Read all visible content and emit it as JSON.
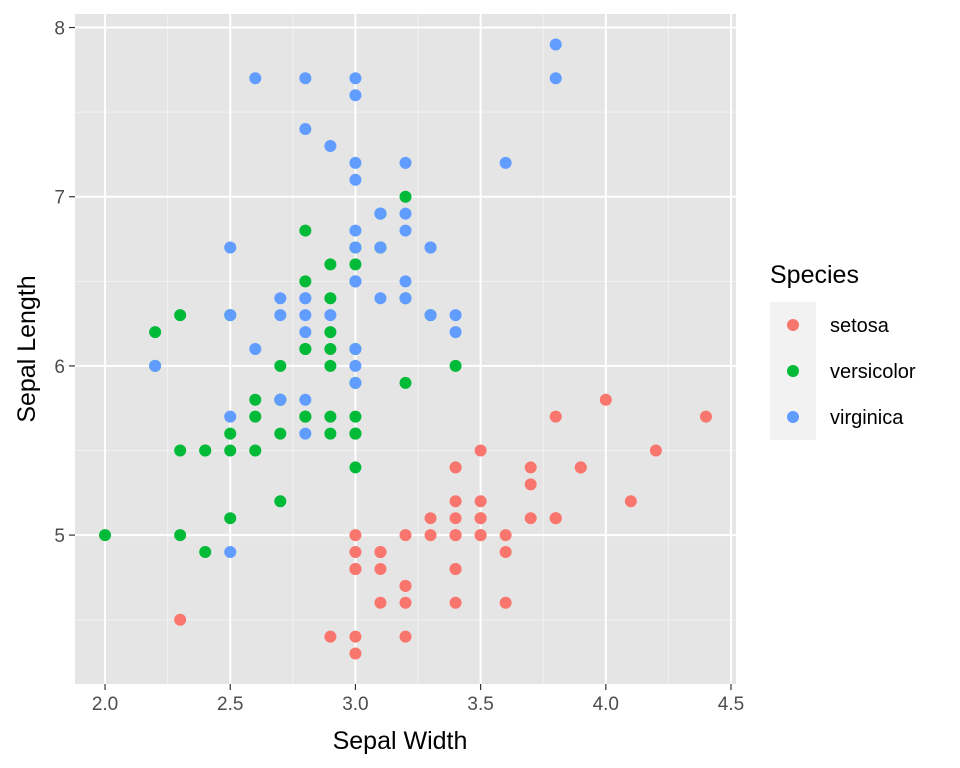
{
  "chart_data": {
    "type": "scatter",
    "title": "",
    "xlabel": "Sepal Width",
    "ylabel": "Sepal Length",
    "xlim": [
      1.88,
      4.52
    ],
    "ylim": [
      4.12,
      8.08
    ],
    "x_ticks": [
      2.0,
      2.5,
      3.0,
      3.5,
      4.0,
      4.5
    ],
    "x_tick_labels": [
      "2.0",
      "2.5",
      "3.0",
      "3.5",
      "4.0",
      "4.5"
    ],
    "y_ticks": [
      5,
      6,
      7,
      8
    ],
    "y_tick_labels": [
      "5",
      "6",
      "7",
      "8"
    ],
    "grid": true,
    "background": "#e5e5e5",
    "legend": {
      "title": "Species",
      "position": "right"
    },
    "series": [
      {
        "name": "setosa",
        "color": "#f8766d",
        "points": [
          [
            3.5,
            5.1
          ],
          [
            3.0,
            4.9
          ],
          [
            3.2,
            4.7
          ],
          [
            3.1,
            4.6
          ],
          [
            3.6,
            5.0
          ],
          [
            3.9,
            5.4
          ],
          [
            3.4,
            4.6
          ],
          [
            3.4,
            5.0
          ],
          [
            2.9,
            4.4
          ],
          [
            3.1,
            4.9
          ],
          [
            3.7,
            5.4
          ],
          [
            3.4,
            4.8
          ],
          [
            3.0,
            4.8
          ],
          [
            3.0,
            4.3
          ],
          [
            4.0,
            5.8
          ],
          [
            4.4,
            5.7
          ],
          [
            3.9,
            5.4
          ],
          [
            3.5,
            5.1
          ],
          [
            3.8,
            5.7
          ],
          [
            3.8,
            5.1
          ],
          [
            3.4,
            5.4
          ],
          [
            3.7,
            5.1
          ],
          [
            3.6,
            4.6
          ],
          [
            3.3,
            5.1
          ],
          [
            3.4,
            4.8
          ],
          [
            3.0,
            5.0
          ],
          [
            3.4,
            5.0
          ],
          [
            3.5,
            5.2
          ],
          [
            3.4,
            5.2
          ],
          [
            3.2,
            4.7
          ],
          [
            3.1,
            4.8
          ],
          [
            3.4,
            5.4
          ],
          [
            4.1,
            5.2
          ],
          [
            4.2,
            5.5
          ],
          [
            3.1,
            4.9
          ],
          [
            3.2,
            5.0
          ],
          [
            3.5,
            5.5
          ],
          [
            3.6,
            4.9
          ],
          [
            3.0,
            4.4
          ],
          [
            3.4,
            5.1
          ],
          [
            3.5,
            5.0
          ],
          [
            2.3,
            4.5
          ],
          [
            3.2,
            4.4
          ],
          [
            3.5,
            5.0
          ],
          [
            3.8,
            5.1
          ],
          [
            3.0,
            4.8
          ],
          [
            3.8,
            5.1
          ],
          [
            3.2,
            4.6
          ],
          [
            3.7,
            5.3
          ],
          [
            3.3,
            5.0
          ]
        ]
      },
      {
        "name": "versicolor",
        "color": "#00ba38",
        "points": [
          [
            3.2,
            7.0
          ],
          [
            3.2,
            6.4
          ],
          [
            3.1,
            6.9
          ],
          [
            2.3,
            5.5
          ],
          [
            2.8,
            6.5
          ],
          [
            2.8,
            5.7
          ],
          [
            3.3,
            6.3
          ],
          [
            2.4,
            4.9
          ],
          [
            2.9,
            6.6
          ],
          [
            2.7,
            5.2
          ],
          [
            2.0,
            5.0
          ],
          [
            3.0,
            5.9
          ],
          [
            2.2,
            6.0
          ],
          [
            2.9,
            6.1
          ],
          [
            2.9,
            5.6
          ],
          [
            3.1,
            6.7
          ],
          [
            3.0,
            5.6
          ],
          [
            2.7,
            5.8
          ],
          [
            2.2,
            6.2
          ],
          [
            2.5,
            5.6
          ],
          [
            3.2,
            5.9
          ],
          [
            2.8,
            6.1
          ],
          [
            2.5,
            6.3
          ],
          [
            2.8,
            6.1
          ],
          [
            2.9,
            6.4
          ],
          [
            3.0,
            6.6
          ],
          [
            2.8,
            6.8
          ],
          [
            3.0,
            6.7
          ],
          [
            2.9,
            6.0
          ],
          [
            2.6,
            5.7
          ],
          [
            2.4,
            5.5
          ],
          [
            2.4,
            5.5
          ],
          [
            2.7,
            5.8
          ],
          [
            2.7,
            6.0
          ],
          [
            3.0,
            5.4
          ],
          [
            3.4,
            6.0
          ],
          [
            3.1,
            6.7
          ],
          [
            2.3,
            6.3
          ],
          [
            3.0,
            5.6
          ],
          [
            2.5,
            5.5
          ],
          [
            2.6,
            5.5
          ],
          [
            3.0,
            6.1
          ],
          [
            2.6,
            5.8
          ],
          [
            2.3,
            5.0
          ],
          [
            2.7,
            5.6
          ],
          [
            3.0,
            5.7
          ],
          [
            2.9,
            5.7
          ],
          [
            2.9,
            6.2
          ],
          [
            2.5,
            5.1
          ],
          [
            2.8,
            5.7
          ]
        ]
      },
      {
        "name": "virginica",
        "color": "#619cff",
        "points": [
          [
            3.3,
            6.3
          ],
          [
            2.7,
            5.8
          ],
          [
            3.0,
            7.1
          ],
          [
            2.9,
            6.3
          ],
          [
            3.0,
            6.5
          ],
          [
            3.0,
            7.6
          ],
          [
            2.5,
            4.9
          ],
          [
            2.9,
            7.3
          ],
          [
            2.5,
            6.7
          ],
          [
            3.6,
            7.2
          ],
          [
            3.2,
            6.5
          ],
          [
            2.7,
            6.4
          ],
          [
            3.0,
            6.8
          ],
          [
            2.5,
            5.7
          ],
          [
            2.8,
            5.8
          ],
          [
            3.2,
            6.4
          ],
          [
            3.0,
            6.5
          ],
          [
            3.8,
            7.7
          ],
          [
            2.6,
            7.7
          ],
          [
            2.2,
            6.0
          ],
          [
            3.2,
            6.9
          ],
          [
            2.8,
            5.6
          ],
          [
            2.8,
            7.7
          ],
          [
            2.7,
            6.3
          ],
          [
            3.3,
            6.7
          ],
          [
            3.2,
            7.2
          ],
          [
            2.8,
            6.2
          ],
          [
            3.0,
            6.1
          ],
          [
            2.8,
            6.4
          ],
          [
            3.0,
            7.2
          ],
          [
            2.8,
            7.4
          ],
          [
            3.8,
            7.9
          ],
          [
            2.8,
            6.4
          ],
          [
            2.8,
            6.3
          ],
          [
            2.6,
            6.1
          ],
          [
            3.0,
            7.7
          ],
          [
            3.4,
            6.3
          ],
          [
            3.1,
            6.4
          ],
          [
            3.0,
            6.0
          ],
          [
            3.1,
            6.9
          ],
          [
            3.1,
            6.7
          ],
          [
            3.1,
            6.9
          ],
          [
            2.7,
            5.8
          ],
          [
            3.2,
            6.8
          ],
          [
            3.3,
            6.7
          ],
          [
            3.0,
            6.7
          ],
          [
            2.5,
            6.3
          ],
          [
            3.0,
            6.5
          ],
          [
            3.4,
            6.2
          ],
          [
            3.0,
            5.9
          ]
        ]
      }
    ]
  }
}
